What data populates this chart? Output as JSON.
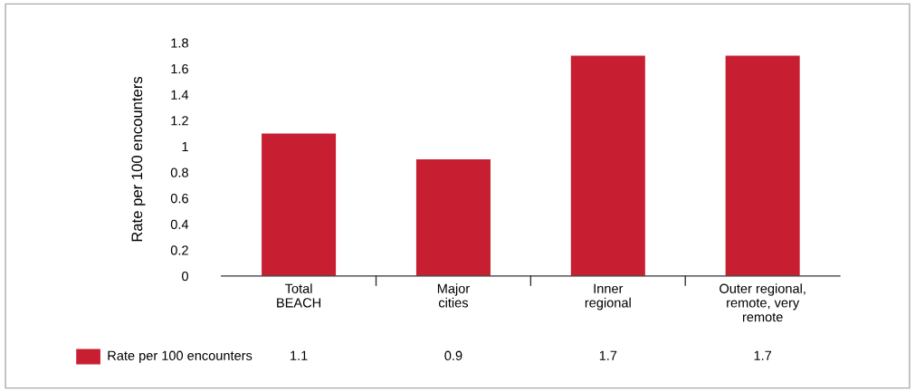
{
  "chart_data": {
    "type": "bar",
    "ylabel": "Rate per 100 encounters",
    "categories": [
      "Total\nBEACH",
      "Major\ncities",
      "Inner\nregional",
      "Outer regional,\nremote, very\nremote"
    ],
    "series": [
      {
        "name": "Rate per 100 encounters",
        "color": "#c81e32",
        "values": [
          1.1,
          0.9,
          1.7,
          1.7
        ]
      }
    ],
    "ylim": [
      0,
      1.8
    ],
    "yticks": [
      0,
      0.2,
      0.4,
      0.6,
      0.8,
      1,
      1.2,
      1.4,
      1.6,
      1.8
    ],
    "grid": false,
    "legend": "bottom left",
    "data_labels": true
  }
}
